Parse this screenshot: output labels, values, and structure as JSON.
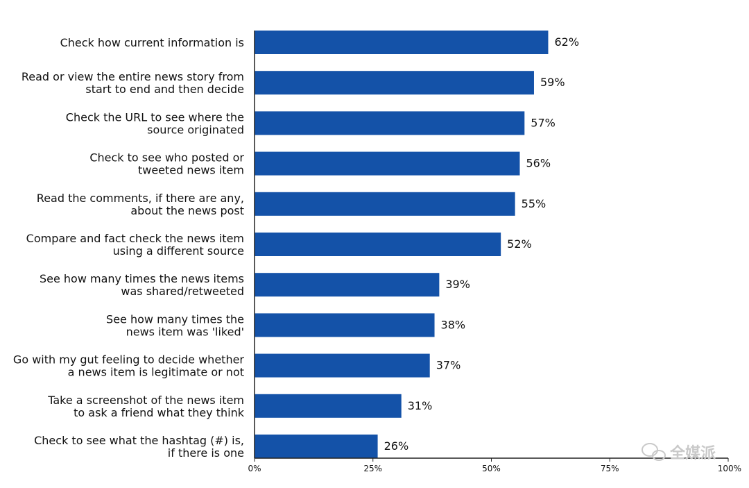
{
  "chart_data": {
    "type": "bar",
    "orientation": "horizontal",
    "categories": [
      [
        "Check how current information is"
      ],
      [
        "Read or view the entire news story from",
        "start to end and then decide"
      ],
      [
        "Check the URL to see where the",
        "source originated"
      ],
      [
        "Check to see who posted or",
        "tweeted news item"
      ],
      [
        "Read the comments, if there are any,",
        "about the news post"
      ],
      [
        "Compare and fact check the news item",
        "using a different source"
      ],
      [
        "See how many times the news items",
        "was shared/retweeted"
      ],
      [
        "See how many times the",
        "news item was 'liked'"
      ],
      [
        "Go with my gut feeling to decide whether",
        "a news item is legitimate or not"
      ],
      [
        "Take a screenshot of the news item",
        "to ask a friend what they think"
      ],
      [
        "Check to see what the hashtag (#) is,",
        "if there is one"
      ]
    ],
    "values": [
      62,
      59,
      57,
      56,
      55,
      52,
      39,
      38,
      37,
      31,
      26
    ],
    "value_labels": [
      "62%",
      "59%",
      "57%",
      "56%",
      "55%",
      "52%",
      "39%",
      "38%",
      "37%",
      "31%",
      "26%"
    ],
    "xlim": [
      0,
      100
    ],
    "x_ticks": [
      0,
      25,
      50,
      75,
      100
    ],
    "x_tick_labels": [
      "0%",
      "25%",
      "50%",
      "75%",
      "100%"
    ],
    "bar_color": "#1452a8",
    "grid": false,
    "title": "",
    "xlabel": "",
    "ylabel": ""
  },
  "watermark": {
    "text": "全媒派",
    "icon": "wechat-icon"
  }
}
